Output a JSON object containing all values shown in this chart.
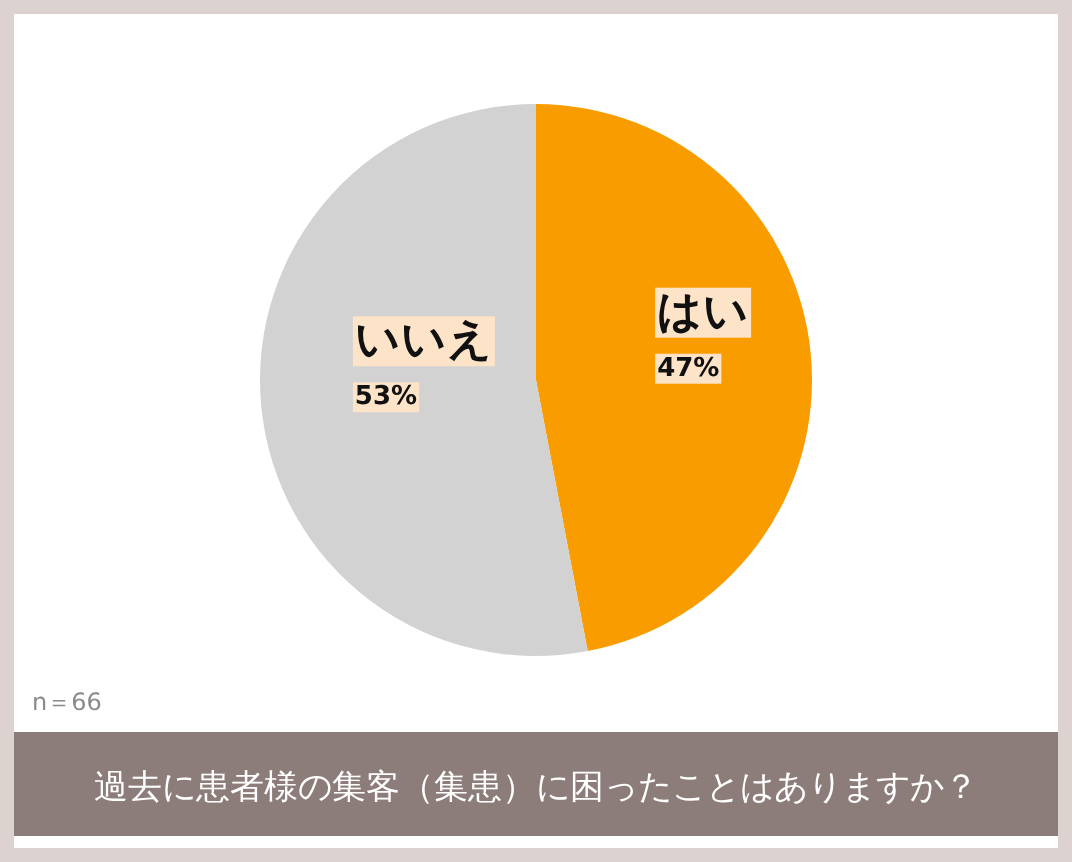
{
  "chart_data": {
    "type": "pie",
    "title": "過去に患者様の集客（集患）に困ったことはありますか？",
    "categories": [
      "はい",
      "いいえ"
    ],
    "values": [
      47,
      53
    ],
    "colors": [
      "#f89c00",
      "#d2d2d2"
    ],
    "value_labels": [
      "47%",
      "53%"
    ],
    "annotations": [
      "n＝66"
    ]
  }
}
